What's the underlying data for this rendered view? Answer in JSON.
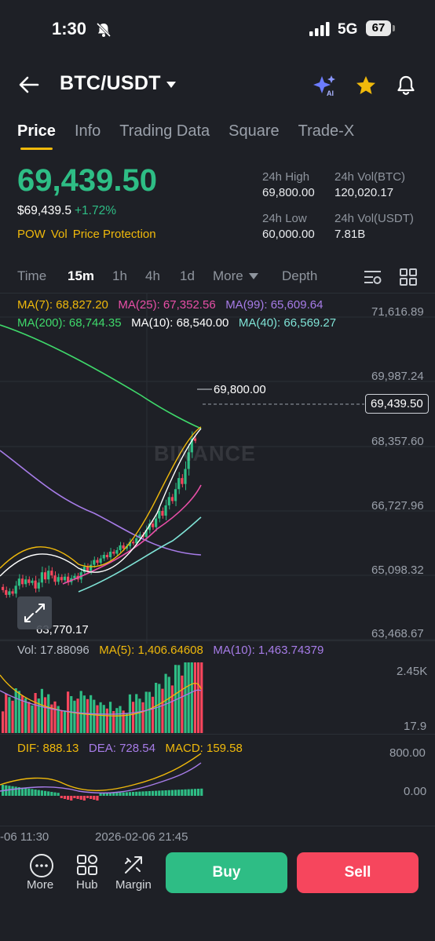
{
  "status": {
    "time": "1:30",
    "network": "5G",
    "battery": "67"
  },
  "header": {
    "pair": "BTC/USDT"
  },
  "tabs": [
    "Price",
    "Info",
    "Trading Data",
    "Square",
    "Trade-X"
  ],
  "ticker": {
    "last": "69,439.50",
    "usd": "$69,439.5",
    "change": "+1.72%",
    "tags": [
      "POW",
      "Vol",
      "Price Protection"
    ],
    "high_label": "24h High",
    "high": "69,800.00",
    "low_label": "24h Low",
    "low": "60,000.00",
    "vol_btc_label": "24h Vol(BTC)",
    "vol_btc": "120,020.17",
    "vol_usdt_label": "24h Vol(USDT)",
    "vol_usdt": "7.81B"
  },
  "intervals": [
    "Time",
    "15m",
    "1h",
    "4h",
    "1d",
    "More",
    "Depth"
  ],
  "ma_line1": [
    "MA(7): 68,827.20",
    "MA(25): 67,352.56",
    "MA(99): 65,609.64"
  ],
  "ma_line2": [
    "MA(200): 68,744.35",
    "MA(10): 68,540.00",
    "MA(40): 66,569.27"
  ],
  "price_axis": [
    "71,616.89",
    "69,987.24",
    "68,357.60",
    "66,727.96",
    "65,098.32",
    "63,468.67"
  ],
  "high_marker": "69,800.00",
  "low_marker": "63,770.17",
  "current_tag": "69,439.50",
  "watermark": "BINANCE",
  "volume": {
    "label": "Vol: 17.88096",
    "ma5": "MA(5): 1,406.64608",
    "ma10": "MA(10): 1,463.74379",
    "axis_top": "2.45K",
    "axis_bottom": "17.9"
  },
  "macd": {
    "dif": "DIF: 888.13",
    "dea": "DEA: 728.54",
    "macd": "MACD: 159.58",
    "axis_top": "800.00",
    "axis_mid": "0.00"
  },
  "time_axis": [
    "-06 11:30",
    "2026-02-06 21:45"
  ],
  "bottom_nav": {
    "more": "More",
    "hub": "Hub",
    "margin": "Margin",
    "buy": "Buy",
    "sell": "Sell"
  },
  "colors": {
    "up": "#2ebd85",
    "down": "#f6465d",
    "accent": "#f0b90b",
    "bg": "#1e2026"
  }
}
